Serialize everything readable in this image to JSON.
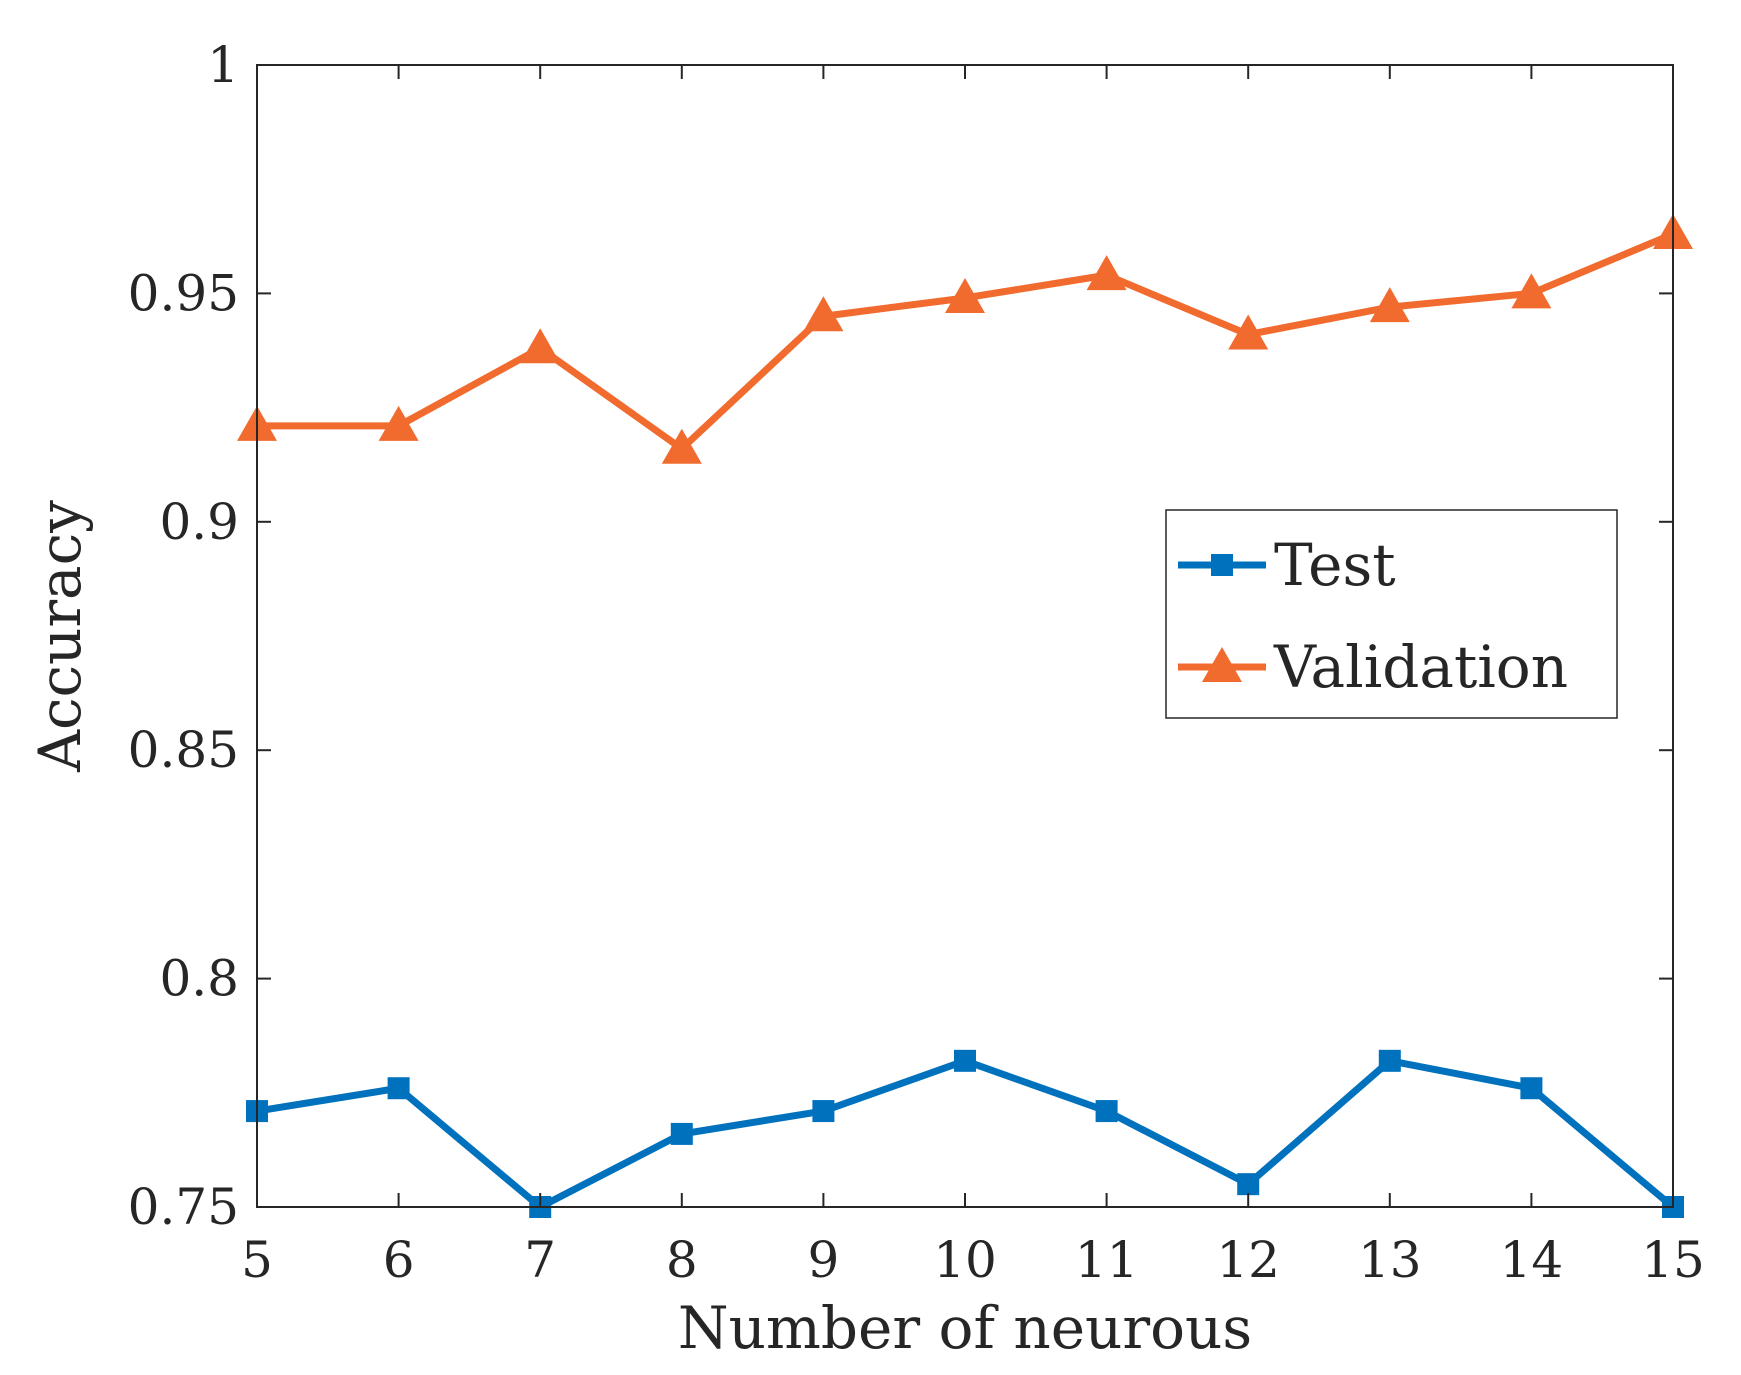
{
  "chart_data": {
    "type": "line",
    "title": "",
    "xlabel": "Number of neurous",
    "ylabel": "Accuracy",
    "x": [
      5,
      6,
      7,
      8,
      9,
      10,
      11,
      12,
      13,
      14,
      15
    ],
    "xticks": [
      "5",
      "6",
      "7",
      "8",
      "9",
      "10",
      "11",
      "12",
      "13",
      "14",
      "15"
    ],
    "xlim": [
      5,
      15
    ],
    "ylim": [
      0.75,
      1
    ],
    "yticks": [
      "0.75",
      "0.8",
      "0.85",
      "0.9",
      "0.95",
      "1"
    ],
    "grid": false,
    "legend_position": "center-right",
    "series": [
      {
        "name": "Test",
        "marker": "square",
        "color": "#0072bd",
        "values": [
          0.771,
          0.776,
          0.75,
          0.766,
          0.771,
          0.782,
          0.771,
          0.755,
          0.782,
          0.776,
          0.75
        ]
      },
      {
        "name": "Validation",
        "marker": "triangle",
        "color": "#f26b2e",
        "values": [
          0.921,
          0.921,
          0.938,
          0.916,
          0.945,
          0.949,
          0.954,
          0.941,
          0.947,
          0.95,
          0.963
        ]
      }
    ]
  }
}
